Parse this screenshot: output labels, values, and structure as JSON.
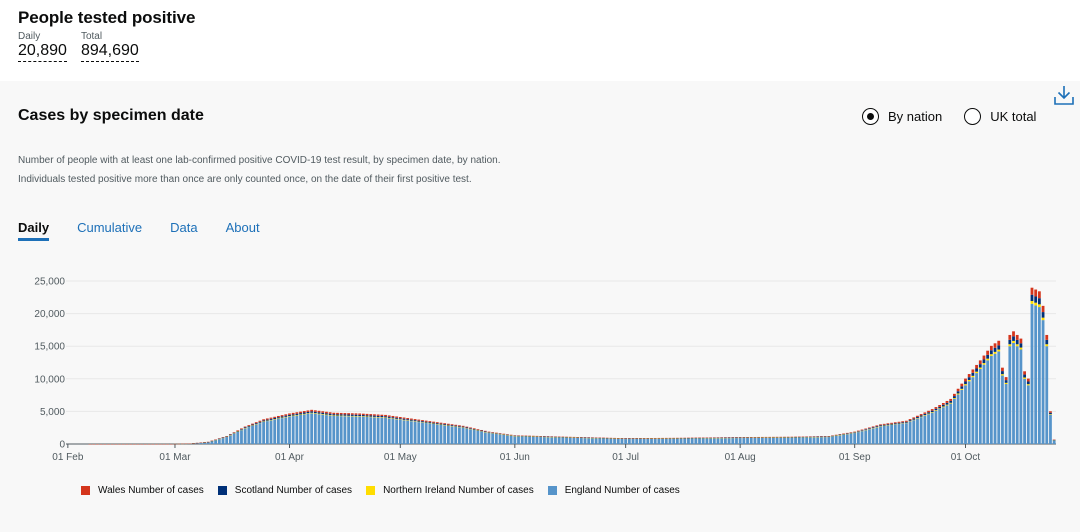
{
  "headline": {
    "title": "People tested positive",
    "daily_label": "Daily",
    "daily_value": "20,890",
    "total_label": "Total",
    "total_value": "894,690"
  },
  "card": {
    "title": "Cases by specimen date",
    "radio_nation": "By nation",
    "radio_uk": "UK total",
    "selected": "nation",
    "description": "Number of people with at least one lab-confirmed positive COVID-19 test result, by specimen date, by nation. Individuals tested positive more than once are only counted once, on the date of their first positive test.",
    "tabs": [
      "Daily",
      "Cumulative",
      "Data",
      "About"
    ],
    "active_tab": "Daily"
  },
  "chart_data": {
    "type": "bar",
    "stacked": true,
    "start_date": "2020-02-01",
    "ylim": [
      0,
      25000
    ],
    "yticks": [
      "0",
      "5,000",
      "10,000",
      "15,000",
      "20,000",
      "25,000"
    ],
    "ytick_values": [
      0,
      5000,
      10000,
      15000,
      20000,
      25000
    ],
    "xticks": [
      "01 Feb",
      "01 Mar",
      "01 Apr",
      "01 May",
      "01 Jun",
      "01 Jul",
      "01 Aug",
      "01 Sep",
      "01 Oct"
    ],
    "grid": true,
    "legend_position": "bottom",
    "series": [
      {
        "name": "England Number of cases",
        "color": "#5694ca"
      },
      {
        "name": "Northern Ireland Number of cases",
        "color": "#ffdd00"
      },
      {
        "name": "Scotland Number of cases",
        "color": "#003078"
      },
      {
        "name": "Wales Number of cases",
        "color": "#d4351c"
      }
    ],
    "legend_order": [
      3,
      2,
      1,
      0
    ],
    "england_keyframes": [
      [
        "2020-02-01",
        0
      ],
      [
        "2020-02-29",
        5
      ],
      [
        "2020-03-05",
        60
      ],
      [
        "2020-03-10",
        300
      ],
      [
        "2020-03-15",
        1100
      ],
      [
        "2020-03-20",
        2400
      ],
      [
        "2020-03-25",
        3400
      ],
      [
        "2020-04-01",
        4200
      ],
      [
        "2020-04-07",
        4700
      ],
      [
        "2020-04-13",
        4300
      ],
      [
        "2020-04-20",
        4200
      ],
      [
        "2020-04-27",
        4000
      ],
      [
        "2020-05-04",
        3500
      ],
      [
        "2020-05-11",
        3000
      ],
      [
        "2020-05-18",
        2500
      ],
      [
        "2020-05-25",
        1700
      ],
      [
        "2020-06-01",
        1200
      ],
      [
        "2020-06-15",
        1000
      ],
      [
        "2020-07-01",
        800
      ],
      [
        "2020-07-15",
        850
      ],
      [
        "2020-08-01",
        950
      ],
      [
        "2020-08-15",
        1000
      ],
      [
        "2020-08-25",
        1100
      ],
      [
        "2020-09-01",
        1700
      ],
      [
        "2020-09-08",
        2700
      ],
      [
        "2020-09-15",
        3200
      ],
      [
        "2020-09-22",
        4800
      ],
      [
        "2020-09-27",
        6200
      ],
      [
        "2020-10-01",
        9000
      ],
      [
        "2020-10-05",
        11500
      ],
      [
        "2020-10-08",
        13500
      ],
      [
        "2020-10-10",
        14200
      ],
      [
        "2020-10-11",
        10500
      ],
      [
        "2020-10-12",
        9200
      ],
      [
        "2020-10-13",
        15000
      ],
      [
        "2020-10-14",
        15500
      ],
      [
        "2020-10-16",
        14500
      ],
      [
        "2020-10-17",
        10000
      ],
      [
        "2020-10-18",
        9000
      ],
      [
        "2020-10-19",
        21500
      ],
      [
        "2020-10-21",
        21000
      ],
      [
        "2020-10-22",
        19000
      ],
      [
        "2020-10-23",
        15000
      ],
      [
        "2020-10-24",
        4500
      ],
      [
        "2020-10-25",
        600
      ]
    ],
    "nation_shares": {
      "Northern Ireland Number of cases": 0.02,
      "Scotland Number of cases": 0.045,
      "Wales Number of cases": 0.05
    }
  }
}
